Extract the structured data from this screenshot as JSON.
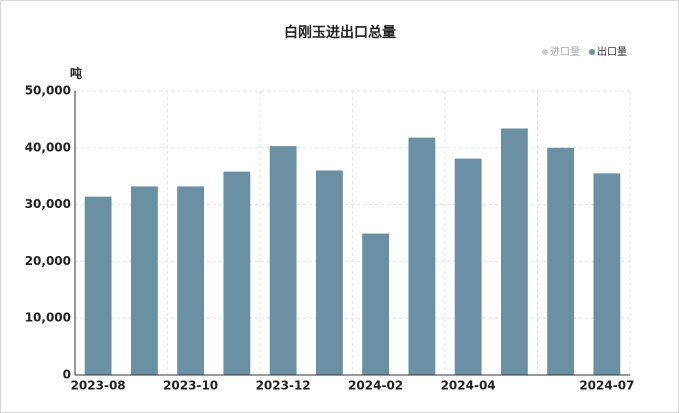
{
  "chart_data": {
    "type": "bar",
    "title": "白刚玉进出口总量",
    "y_unit": "吨",
    "categories": [
      "2023-08",
      null,
      "2023-10",
      null,
      "2023-12",
      null,
      "2024-02",
      null,
      "2024-04",
      null,
      null,
      "2024-07"
    ],
    "series": [
      {
        "name": "进口量",
        "color": "#cccccc",
        "visible": false,
        "values": [
          null,
          null,
          null,
          null,
          null,
          null,
          null,
          null,
          null,
          null,
          null,
          null
        ]
      },
      {
        "name": "出口量",
        "color": "#6b8fa3",
        "visible": true,
        "values": [
          31400,
          33200,
          33200,
          35800,
          40300,
          36000,
          24900,
          41800,
          38100,
          43400,
          40000,
          35500
        ]
      }
    ],
    "ylim": [
      0,
      50000
    ],
    "yticks": [
      0,
      {
        "value": 10000,
        "label": "10,000"
      },
      {
        "value": 20000,
        "label": "20,000"
      },
      {
        "value": 30000,
        "label": "30,000"
      },
      {
        "value": 40000,
        "label": "40,000"
      },
      {
        "value": 50000,
        "label": "50,000"
      }
    ],
    "grid": true,
    "legend": "top-right"
  }
}
